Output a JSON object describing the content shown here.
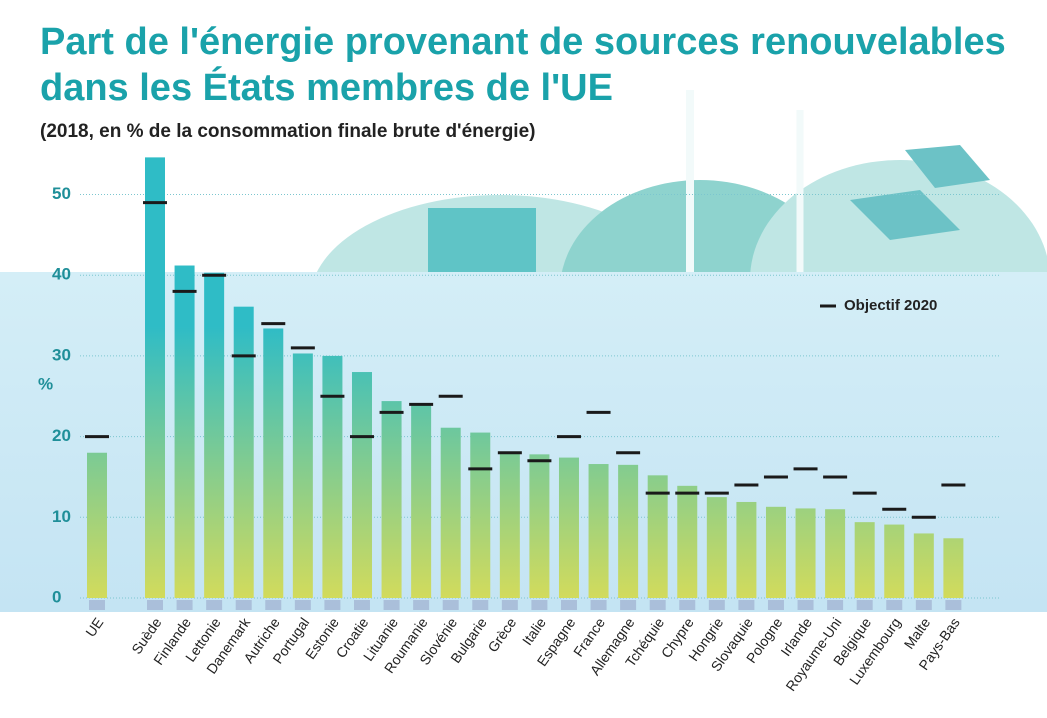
{
  "chart_data": {
    "type": "bar",
    "title": "Part de l'énergie provenant de sources renouvelables",
    "title_line2": "dans les États membres de l'UE",
    "subtitle": "(2018, en % de la consommation finale brute d'énergie)",
    "y_label": "%",
    "categories": [
      "UE",
      "Suède",
      "Finlande",
      "Lettonie",
      "Danemark",
      "Autriche",
      "Portugal",
      "Estonie",
      "Croatie",
      "Lituanie",
      "Roumanie",
      "Slovénie",
      "Bulgarie",
      "Grèce",
      "Italie",
      "Espagne",
      "France",
      "Allemagne",
      "Tchéquie",
      "Chypre",
      "Hongrie",
      "Slovaquie",
      "Pologne",
      "Irlande",
      "Royaume-Uni",
      "Belgique",
      "Luxembourg",
      "Malte",
      "Pays-Bas"
    ],
    "series": [
      {
        "type": "bar",
        "colors": [
          "#2fbcc6",
          "#d2db5c"
        ],
        "values": [
          18.0,
          54.6,
          41.2,
          40.3,
          36.1,
          33.4,
          30.3,
          30.0,
          28.0,
          24.4,
          23.9,
          21.1,
          20.5,
          18.0,
          17.8,
          17.4,
          16.6,
          16.5,
          15.2,
          13.9,
          12.5,
          11.9,
          11.3,
          11.1,
          11.0,
          9.4,
          9.1,
          8.0,
          7.4
        ]
      },
      {
        "type": "marker",
        "name": "Objectif 2020",
        "color": "#1a1a1a",
        "values": [
          20,
          49,
          38,
          40,
          30,
          34,
          31,
          25,
          20,
          23,
          24,
          25,
          16,
          18,
          17,
          20,
          23,
          18,
          13,
          13,
          13,
          14,
          15,
          16,
          15,
          13,
          11,
          10,
          14
        ]
      }
    ],
    "ylim": [
      0,
      56
    ],
    "yticks": [
      0,
      10,
      20,
      30,
      40,
      50
    ],
    "grid": true
  }
}
